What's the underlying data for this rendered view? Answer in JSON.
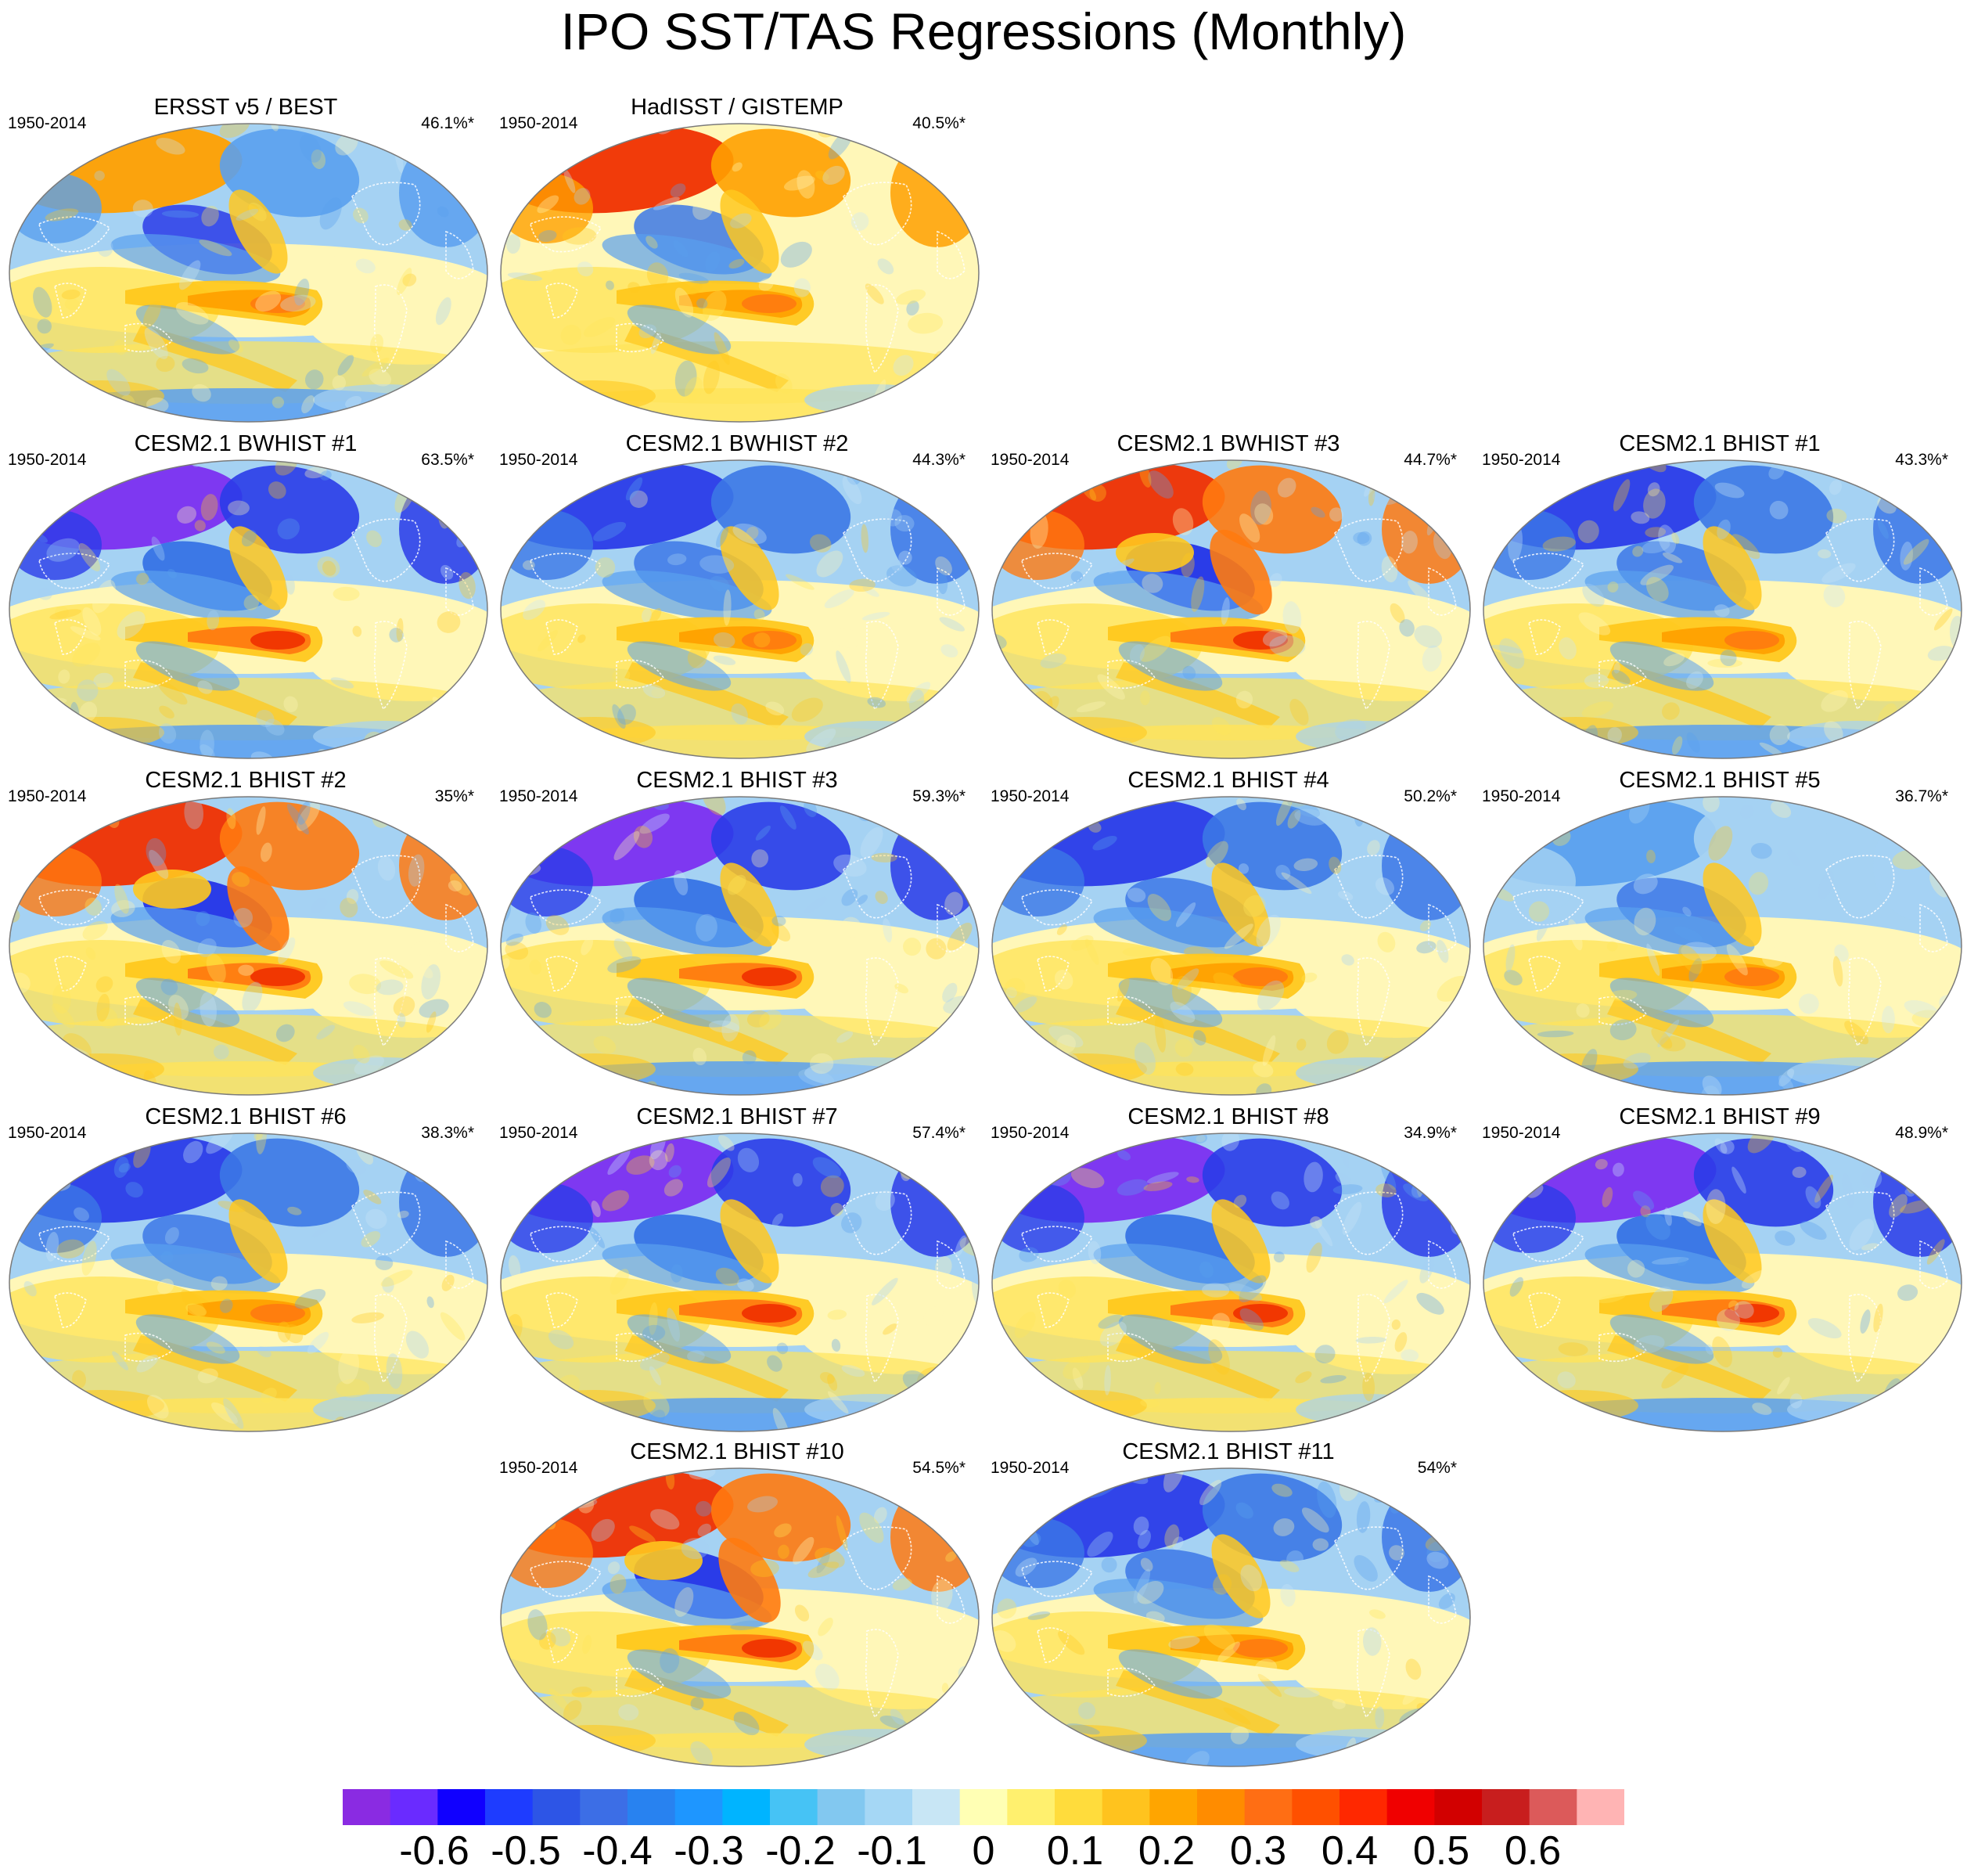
{
  "title": "IPO SST/TAS Regressions (Monthly)",
  "panels": [
    {
      "title": "ERSST v5 / BEST",
      "period": "1950-2014",
      "variance": "46.1%*",
      "pattern": "obs1"
    },
    {
      "title": "HadISST / GISTEMP",
      "period": "1950-2014",
      "variance": "40.5%*",
      "pattern": "obs2"
    },
    {
      "title": "CESM2.1 BWHIST #1",
      "period": "1950-2014",
      "variance": "63.5%*",
      "pattern": "cold"
    },
    {
      "title": "CESM2.1 BWHIST #2",
      "period": "1950-2014",
      "variance": "44.3%*",
      "pattern": "mixed"
    },
    {
      "title": "CESM2.1 BWHIST #3",
      "period": "1950-2014",
      "variance": "44.7%*",
      "pattern": "warm"
    },
    {
      "title": "CESM2.1 BHIST #1",
      "period": "1950-2014",
      "variance": "43.3%*",
      "pattern": "mixed"
    },
    {
      "title": "CESM2.1 BHIST #2",
      "period": "1950-2014",
      "variance": "35%*",
      "pattern": "warm"
    },
    {
      "title": "CESM2.1 BHIST #3",
      "period": "1950-2014",
      "variance": "59.3%*",
      "pattern": "cold"
    },
    {
      "title": "CESM2.1 BHIST #4",
      "period": "1950-2014",
      "variance": "50.2%*",
      "pattern": "mixed"
    },
    {
      "title": "CESM2.1 BHIST #5",
      "period": "1950-2014",
      "variance": "36.7%*",
      "pattern": "weak"
    },
    {
      "title": "CESM2.1 BHIST #6",
      "period": "1950-2014",
      "variance": "38.3%*",
      "pattern": "mixed"
    },
    {
      "title": "CESM2.1 BHIST #7",
      "period": "1950-2014",
      "variance": "57.4%*",
      "pattern": "cold"
    },
    {
      "title": "CESM2.1 BHIST #8",
      "period": "1950-2014",
      "variance": "34.9%*",
      "pattern": "cold"
    },
    {
      "title": "CESM2.1 BHIST #9",
      "period": "1950-2014",
      "variance": "48.9%*",
      "pattern": "cold"
    },
    {
      "title": "CESM2.1 BHIST #10",
      "period": "1950-2014",
      "variance": "54.5%*",
      "pattern": "warm"
    },
    {
      "title": "CESM2.1 BHIST #11",
      "period": "1950-2014",
      "variance": "54%*",
      "pattern": "mixed"
    }
  ],
  "colorbar": {
    "colors": [
      "#8a2be2",
      "#6a2bff",
      "#1000ff",
      "#1e3cff",
      "#2d55e6",
      "#3c6ee6",
      "#2882f0",
      "#1e96ff",
      "#00b4ff",
      "#46c3f5",
      "#82c8f0",
      "#a5d7f5",
      "#c8e6f5",
      "#ffffb4",
      "#fff06e",
      "#ffdc3c",
      "#ffc31e",
      "#ffa500",
      "#ff8c00",
      "#ff6e14",
      "#ff5000",
      "#ff2800",
      "#f00000",
      "#d20000",
      "#c81e1e",
      "#dc5a5a",
      "#ffb4b4"
    ],
    "labels": [
      "-0.6",
      "-0.5",
      "-0.4",
      "-0.3",
      "-0.2",
      "-0.1",
      "0",
      "0.1",
      "0.2",
      "0.3",
      "0.4",
      "0.5",
      "0.6"
    ],
    "label_values": [
      -0.6,
      -0.5,
      -0.4,
      -0.3,
      -0.2,
      -0.1,
      0,
      0.1,
      0.2,
      0.3,
      0.4,
      0.5,
      0.6
    ],
    "range": [
      -0.7,
      0.7
    ]
  }
}
